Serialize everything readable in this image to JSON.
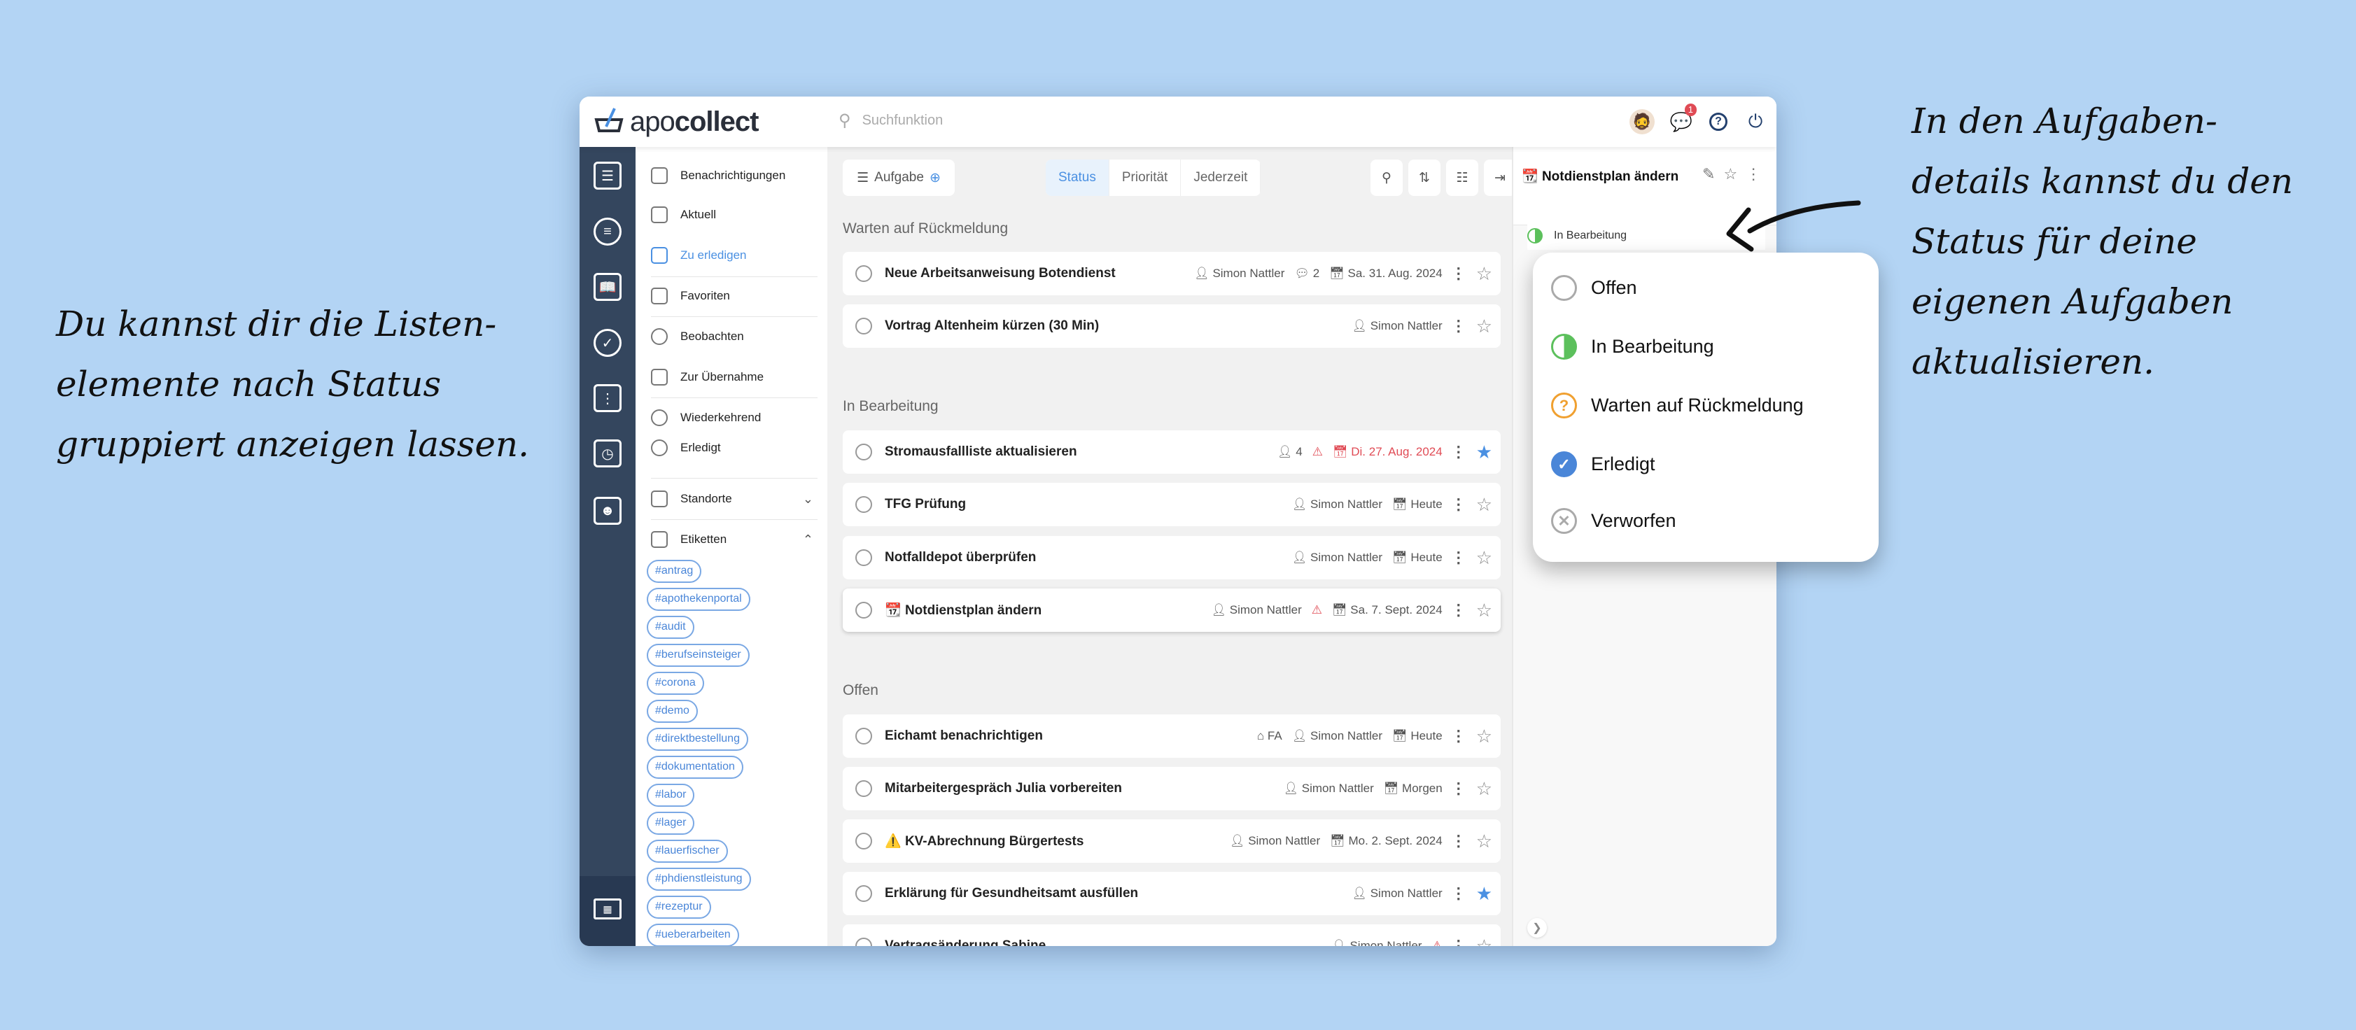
{
  "annotations": {
    "left": [
      "Du kannst dir die Listen-",
      "elemente nach Status",
      "gruppiert anzeigen lassen."
    ],
    "right": [
      "In den Aufgaben-",
      "details kannst du den",
      "Status für deine",
      "eigenen Aufgaben",
      "aktualisieren."
    ]
  },
  "header": {
    "logo_light": "apo",
    "logo_bold": "collect",
    "search_placeholder": "Suchfunktion",
    "notification_count": "1"
  },
  "nav": {
    "items": [
      {
        "label": "Benachrichtigungen"
      },
      {
        "label": "Aktuell"
      },
      {
        "label": "Zu erledigen",
        "active": true
      },
      {
        "label": "Favoriten"
      },
      {
        "label": "Beobachten"
      },
      {
        "label": "Zur Übernahme"
      },
      {
        "label": "Wiederkehrend"
      },
      {
        "label": "Erledigt"
      },
      {
        "label": "Standorte"
      },
      {
        "label": "Etiketten"
      }
    ],
    "tags": [
      "#antrag",
      "#apothekenportal",
      "#audit",
      "#berufseinsteiger",
      "#corona",
      "#demo",
      "#direktbestellung",
      "#dokumentation",
      "#labor",
      "#lager",
      "#lauerfischer",
      "#phdienstleistung",
      "#rezeptur",
      "#ueberarbeiten"
    ]
  },
  "toolbar": {
    "add_task": "Aufgabe",
    "group_options": [
      "Status",
      "Priorität",
      "Jederzeit"
    ],
    "selected_group": "Status"
  },
  "groups": [
    {
      "title": "Warten auf Rückmeldung",
      "tasks": [
        {
          "title": "Neue Arbeitsanweisung Botendienst",
          "assignee": "Simon Nattler",
          "comments": "2",
          "due": "Sa. 31. Aug. 2024",
          "starred": false
        },
        {
          "title": "Vortrag Altenheim kürzen (30 Min)",
          "assignee": "Simon Nattler",
          "starred": false
        }
      ]
    },
    {
      "title": "In Bearbeitung",
      "tasks": [
        {
          "title": "Stromausfallliste aktualisieren",
          "assignee": "4",
          "warning": true,
          "due": "Di. 27. Aug. 2024",
          "overdue": true,
          "starred": true
        },
        {
          "title": "TFG Prüfung",
          "assignee": "Simon Nattler",
          "due": "Heute",
          "starred": false
        },
        {
          "title": "Notfalldepot überprüfen",
          "assignee": "Simon Nattler",
          "due": "Heute",
          "starred": false
        },
        {
          "title": "Notdienstplan ändern",
          "prefix": "📆",
          "assignee": "Simon Nattler",
          "warning": true,
          "due": "Sa. 7. Sept. 2024",
          "starred": false,
          "selected": true
        }
      ]
    },
    {
      "title": "Offen",
      "tasks": [
        {
          "title": "Eichamt benachrichtigen",
          "location": "FA",
          "assignee": "Simon Nattler",
          "due": "Heute",
          "starred": false
        },
        {
          "title": "Mitarbeitergespräch Julia vorbereiten",
          "assignee": "Simon Nattler",
          "due": "Morgen",
          "starred": false
        },
        {
          "title": "KV-Abrechnung Bürgertests",
          "prefix": "⚠️",
          "assignee": "Simon Nattler",
          "due": "Mo. 2. Sept. 2024",
          "starred": false
        },
        {
          "title": "Erklärung für Gesundheitsamt ausfüllen",
          "assignee": "Simon Nattler",
          "starred": true
        },
        {
          "title": "Vertragsänderung Sabine",
          "assignee": "Simon Nattler",
          "warning": true,
          "starred": false
        }
      ]
    }
  ],
  "detail": {
    "title": "Notdienstplan ändern",
    "status": "In Bearbeitung"
  },
  "status_menu": [
    {
      "label": "Offen",
      "icon": "empty-circle-icon",
      "color": "#aaaaaa"
    },
    {
      "label": "In Bearbeitung",
      "icon": "half-circle-icon",
      "color": "#5cc05c"
    },
    {
      "label": "Warten auf Rückmeldung",
      "icon": "question-circle-icon",
      "color": "#f0a030"
    },
    {
      "label": "Erledigt",
      "icon": "check-circle-icon",
      "color": "#4a86d8"
    },
    {
      "label": "Verworfen",
      "icon": "x-circle-icon",
      "color": "#aaaaaa"
    }
  ],
  "colors": {
    "background": "#b3d4f4",
    "sidebar": "#34465e",
    "accent": "#4a90e2",
    "danger": "#e04b55"
  }
}
